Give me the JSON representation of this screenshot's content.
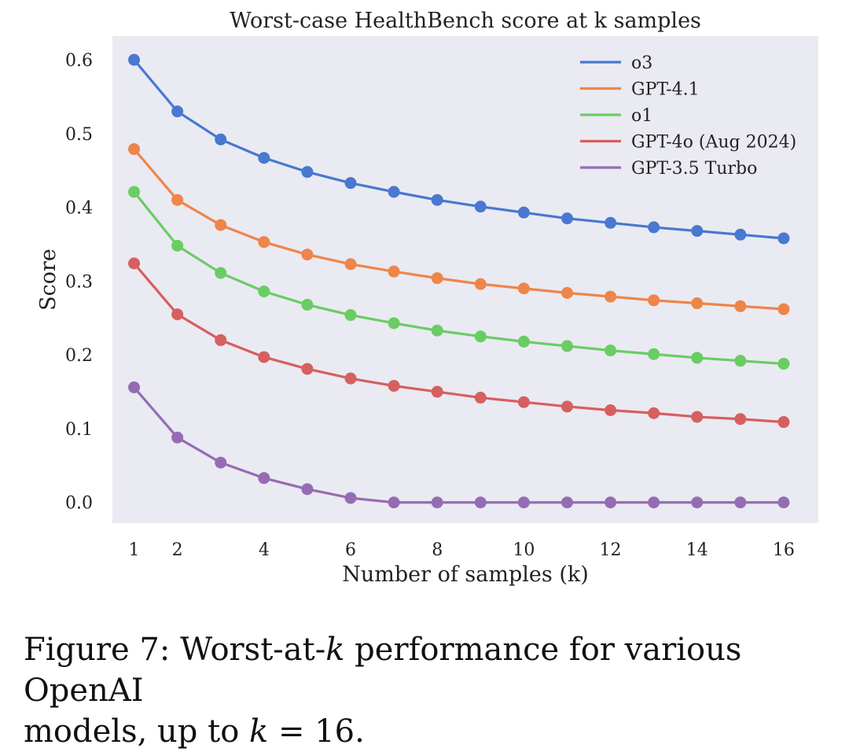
{
  "chart_data": {
    "type": "line",
    "title": "Worst-case HealthBench score at k samples",
    "xlabel": "Number of samples (k)",
    "ylabel": "Score",
    "xlim": [
      0.5,
      16.8
    ],
    "ylim": [
      -0.028,
      0.632
    ],
    "x_ticks": [
      1,
      2,
      4,
      6,
      8,
      10,
      12,
      14,
      16
    ],
    "y_ticks": [
      0.0,
      0.1,
      0.2,
      0.3,
      0.4,
      0.5,
      0.6
    ],
    "y_tick_labels": [
      "0.0",
      "0.1",
      "0.2",
      "0.3",
      "0.4",
      "0.5",
      "0.6"
    ],
    "grid": false,
    "legend_position": "top-right",
    "x": [
      1,
      2,
      3,
      4,
      5,
      6,
      7,
      8,
      9,
      10,
      11,
      12,
      13,
      14,
      15,
      16
    ],
    "series": [
      {
        "name": "o3",
        "color": "#4878d0",
        "values": [
          0.6,
          0.53,
          0.492,
          0.467,
          0.448,
          0.433,
          0.421,
          0.41,
          0.401,
          0.393,
          0.385,
          0.379,
          0.373,
          0.368,
          0.363,
          0.358
        ]
      },
      {
        "name": "GPT-4.1",
        "color": "#ee854a",
        "values": [
          0.479,
          0.41,
          0.376,
          0.353,
          0.336,
          0.323,
          0.313,
          0.304,
          0.296,
          0.29,
          0.284,
          0.279,
          0.274,
          0.27,
          0.266,
          0.262
        ]
      },
      {
        "name": "o1",
        "color": "#6acc64",
        "values": [
          0.421,
          0.348,
          0.311,
          0.286,
          0.268,
          0.254,
          0.243,
          0.233,
          0.225,
          0.218,
          0.212,
          0.206,
          0.201,
          0.196,
          0.192,
          0.188
        ]
      },
      {
        "name": "GPT-4o (Aug 2024)",
        "color": "#d65f5f",
        "values": [
          0.324,
          0.255,
          0.22,
          0.197,
          0.181,
          0.168,
          0.158,
          0.15,
          0.142,
          0.136,
          0.13,
          0.125,
          0.121,
          0.116,
          0.113,
          0.109
        ]
      },
      {
        "name": "GPT-3.5 Turbo",
        "color": "#956cb4",
        "values": [
          0.156,
          0.088,
          0.054,
          0.033,
          0.018,
          0.006,
          0.0,
          0.0,
          0.0,
          0.0,
          0.0,
          0.0,
          0.0,
          0.0,
          0.0,
          0.0
        ]
      }
    ]
  },
  "caption": {
    "line1_prefix": "Figure 7: Worst-at-",
    "line1_k": "k",
    "line1_suffix": " performance for various OpenAI",
    "line2_prefix": "models, up to ",
    "line2_k": "k",
    "line2_suffix": " = 16."
  },
  "colors": {
    "plot_background": "#eaeaf2"
  }
}
